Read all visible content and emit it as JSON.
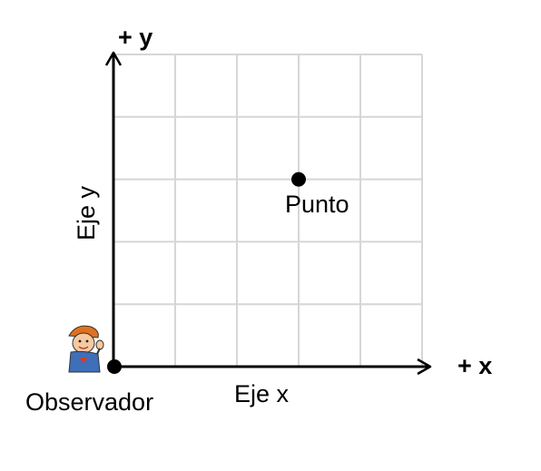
{
  "diagram": {
    "axis_positive_y": "+ y",
    "axis_positive_x": "+ x",
    "axis_y_name": "Eje y",
    "axis_x_name": "Eje x",
    "point_label": "Punto",
    "origin_label": "Observador",
    "grid_columns": 5,
    "grid_rows": 5,
    "point_grid_position": {
      "col": 3,
      "row": 3
    },
    "colors": {
      "grid": "#d6d6d6",
      "axis": "#000000",
      "point": "#000000"
    },
    "observer_icon": "cartoon-boy-icon"
  }
}
